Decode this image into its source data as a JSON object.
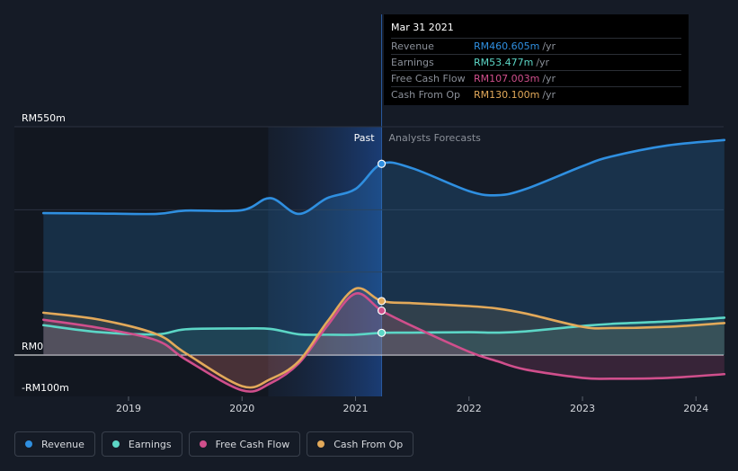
{
  "chart_data": {
    "type": "line",
    "y_tick_labels": [
      "RM550m",
      "RM0",
      "-RM100m"
    ],
    "ylim": [
      -100,
      550
    ],
    "x_ticks": [
      2019,
      2020,
      2021,
      2022,
      2023,
      2024
    ],
    "x_tick_labels": [
      "2019",
      "2020",
      "2021",
      "2022",
      "2023",
      "2024"
    ],
    "xlim": [
      2018.2,
      2024.25
    ],
    "past_label": "Past",
    "forecast_label": "Analysts Forecasts",
    "divider_x": 2021.23,
    "series": [
      {
        "name": "Revenue",
        "color": "#2f8fe0",
        "points": [
          [
            2018.25,
            342
          ],
          [
            2018.75,
            341
          ],
          [
            2019.25,
            340
          ],
          [
            2019.5,
            348
          ],
          [
            2020.0,
            349
          ],
          [
            2020.25,
            378
          ],
          [
            2020.5,
            340
          ],
          [
            2020.75,
            378
          ],
          [
            2021.0,
            400
          ],
          [
            2021.23,
            460.605
          ],
          [
            2021.5,
            450
          ],
          [
            2022.0,
            395
          ],
          [
            2022.25,
            385
          ],
          [
            2022.5,
            400
          ],
          [
            2023.0,
            455
          ],
          [
            2023.25,
            478
          ],
          [
            2023.75,
            505
          ],
          [
            2024.25,
            518
          ]
        ]
      },
      {
        "name": "Earnings",
        "color": "#5cd6c6",
        "points": [
          [
            2018.25,
            72
          ],
          [
            2018.75,
            55
          ],
          [
            2019.25,
            50
          ],
          [
            2019.5,
            62
          ],
          [
            2020.0,
            64
          ],
          [
            2020.25,
            63
          ],
          [
            2020.5,
            50
          ],
          [
            2020.75,
            49
          ],
          [
            2021.0,
            49
          ],
          [
            2021.23,
            53.477
          ],
          [
            2021.5,
            54
          ],
          [
            2022.0,
            55
          ],
          [
            2022.25,
            54
          ],
          [
            2022.5,
            57
          ],
          [
            2023.0,
            70
          ],
          [
            2023.25,
            75
          ],
          [
            2023.75,
            81
          ],
          [
            2024.25,
            90
          ]
        ]
      },
      {
        "name": "Free Cash Flow",
        "color": "#d04f8c",
        "points": [
          [
            2018.25,
            85
          ],
          [
            2018.75,
            65
          ],
          [
            2019.25,
            35
          ],
          [
            2019.5,
            -10
          ],
          [
            2020.0,
            -85
          ],
          [
            2020.25,
            -68
          ],
          [
            2020.5,
            -20
          ],
          [
            2020.75,
            70
          ],
          [
            2021.0,
            148
          ],
          [
            2021.23,
            107.003
          ],
          [
            2021.5,
            70
          ],
          [
            2022.0,
            8
          ],
          [
            2022.25,
            -15
          ],
          [
            2022.5,
            -35
          ],
          [
            2023.0,
            -55
          ],
          [
            2023.25,
            -57
          ],
          [
            2023.75,
            -55
          ],
          [
            2024.25,
            -46
          ]
        ]
      },
      {
        "name": "Cash From Op",
        "color": "#e2a95a",
        "points": [
          [
            2018.25,
            102
          ],
          [
            2018.75,
            85
          ],
          [
            2019.25,
            50
          ],
          [
            2019.5,
            5
          ],
          [
            2020.0,
            -75
          ],
          [
            2020.25,
            -58
          ],
          [
            2020.5,
            -15
          ],
          [
            2020.75,
            80
          ],
          [
            2021.0,
            160
          ],
          [
            2021.23,
            130.1
          ],
          [
            2021.5,
            125
          ],
          [
            2022.0,
            118
          ],
          [
            2022.25,
            112
          ],
          [
            2022.5,
            100
          ],
          [
            2023.0,
            68
          ],
          [
            2023.25,
            65
          ],
          [
            2023.75,
            68
          ],
          [
            2024.25,
            77
          ]
        ]
      }
    ],
    "grid": true,
    "legend_position": "bottom-left"
  },
  "tooltip": {
    "date": "Mar 31 2021",
    "unit": "/yr",
    "rows": [
      {
        "label": "Revenue",
        "value": "RM460.605m",
        "color": "#2f8fe0"
      },
      {
        "label": "Earnings",
        "value": "RM53.477m",
        "color": "#5cd6c6"
      },
      {
        "label": "Free Cash Flow",
        "value": "RM107.003m",
        "color": "#d04f8c"
      },
      {
        "label": "Cash From Op",
        "value": "RM130.100m",
        "color": "#e2a95a"
      }
    ]
  },
  "legend": [
    {
      "label": "Revenue",
      "color": "#2f8fe0"
    },
    {
      "label": "Earnings",
      "color": "#5cd6c6"
    },
    {
      "label": "Free Cash Flow",
      "color": "#d04f8c"
    },
    {
      "label": "Cash From Op",
      "color": "#e2a95a"
    }
  ]
}
